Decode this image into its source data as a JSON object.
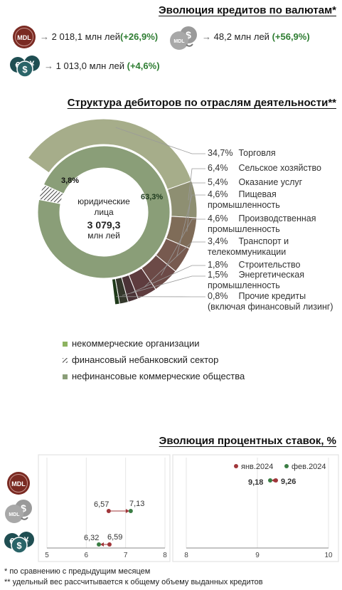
{
  "currency_section": {
    "title": "Эволюция кредитов по валютам*",
    "items": [
      {
        "amount": "2 018,1 млн лей",
        "change": "(+26,9%)"
      },
      {
        "amount": "48,2 млн лей",
        "change": "(+56,9%)"
      },
      {
        "amount": "1 013,0 млн лей",
        "change": "(+4,6%)"
      }
    ],
    "coin_mdl": "MDL"
  },
  "structure_section": {
    "title": "Структура дебиторов по отраслям деятельности**",
    "center_label_1": "юридические",
    "center_label_2": "лица",
    "center_value": "3 079,3",
    "center_unit": "млн лей",
    "inner_label_small": "3,8%",
    "inner_label_big": "63,3%",
    "outer_labels": [
      {
        "pct": "34,7%",
        "text": "Торговля",
        "text2": ""
      },
      {
        "pct": "6,4%",
        "text": "Сельское хозяйство",
        "text2": ""
      },
      {
        "pct": "5,4%",
        "text": "Оказание услуг",
        "text2": ""
      },
      {
        "pct": "4,6%",
        "text": "Пищевая",
        "text2": "промышленность"
      },
      {
        "pct": "4,6%",
        "text": "Производственная",
        "text2": "промышленность"
      },
      {
        "pct": "3,4%",
        "text": "Транспорт и",
        "text2": "телекоммуникации"
      },
      {
        "pct": "1,8%",
        "text": "Строительство",
        "text2": ""
      },
      {
        "pct": "1,5%",
        "text": "Энергетическая",
        "text2": "промышленность"
      },
      {
        "pct": "0,8%",
        "text": "Прочие кредиты",
        "text2": "(включая финансовый лизинг)"
      }
    ],
    "legend": [
      {
        "label": "некоммерческие организации",
        "color": "#8db360"
      },
      {
        "label": "финансовый небанковский сектор",
        "color": "#555555"
      },
      {
        "label": "нефинансовые коммерческие общества",
        "color": "#8a9e78"
      }
    ]
  },
  "rates_section": {
    "title": "Эволюция процентных ставок, %",
    "legend": [
      {
        "label": "янв.2024",
        "color": "#a0363a"
      },
      {
        "label": "фев.2024",
        "color": "#3a7d44"
      }
    ],
    "left_ticks": [
      "5",
      "6",
      "7",
      "8"
    ],
    "right_ticks": [
      "8",
      "9",
      "10"
    ],
    "labels": {
      "mdl_jan": "6,57",
      "mdl_feb": "7,13",
      "fx_jan": "6,59",
      "fx_feb": "6,32",
      "usd_jan": "9,26",
      "usd_feb": "9,18"
    }
  },
  "footnotes": [
    "* по сравнению с предыдущим месяцем",
    "** удельный вес рассчитывается к общему объему выданных кредитов"
  ],
  "chart_data": [
    {
      "type": "pie",
      "title": "Структура дебиторов по отраслям деятельности**",
      "inner_ring": {
        "categories": [
          "некоммерческие организации",
          "финансовый небанковский сектор",
          "нефинансовые коммерческие общества"
        ],
        "values": [
          0.0,
          3.8,
          96.2
        ]
      },
      "outer_ring": {
        "categories": [
          "Торговля",
          "Сельское хозяйство",
          "Оказание услуг",
          "Пищевая промышленность",
          "Производственная промышленность",
          "Транспорт и телекоммуникации",
          "Строительство",
          "Энергетическая промышленность",
          "Прочие кредиты (включая финансовый лизинг)"
        ],
        "values": [
          34.7,
          6.4,
          5.4,
          4.6,
          4.6,
          3.4,
          1.8,
          1.5,
          0.8
        ]
      }
    },
    {
      "type": "scatter",
      "title": "Эволюция процентных ставок, %",
      "series": [
        {
          "name": "янв.2024",
          "values": [
            6.57,
            6.59,
            9.26
          ]
        },
        {
          "name": "фев.2024",
          "values": [
            7.13,
            6.32,
            9.18
          ]
        }
      ],
      "xlim_left": [
        5,
        8
      ],
      "xlim_right": [
        8,
        10
      ],
      "legend": "top-right"
    }
  ]
}
